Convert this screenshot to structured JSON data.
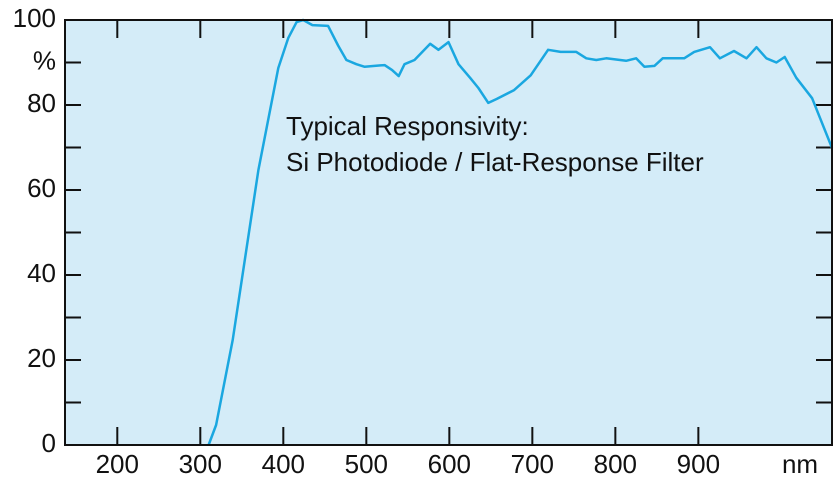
{
  "chart_data": {
    "type": "line",
    "annotation": [
      "Typical Responsivity:",
      "Si Photodiode / Flat-Response Filter"
    ],
    "x_label": "nm",
    "x": [
      310,
      319,
      339,
      370,
      394,
      406,
      416,
      424,
      435,
      454,
      466,
      476,
      488,
      498,
      510,
      522,
      531,
      539,
      546,
      558,
      577,
      587,
      599,
      611,
      625,
      635,
      647,
      657,
      678,
      698,
      719,
      734,
      753,
      765,
      777,
      789,
      813,
      825,
      835,
      847,
      857,
      883,
      895,
      914,
      926,
      943,
      958,
      970,
      982,
      994,
      1004,
      1018,
      1037,
      1061
    ],
    "values": [
      0,
      4.7,
      24.7,
      64.7,
      88.7,
      95.8,
      99.5,
      100,
      98.8,
      98.6,
      94,
      90.6,
      89.6,
      89,
      89.2,
      89.4,
      88.2,
      86.8,
      89.6,
      90.6,
      94.4,
      93,
      94.8,
      89.6,
      86.4,
      84,
      80.5,
      81.4,
      83.5,
      87,
      93,
      92.5,
      92.5,
      91,
      90.6,
      91,
      90.4,
      91,
      89,
      89.2,
      91,
      91,
      92.5,
      93.6,
      91,
      92.7,
      91,
      93.6,
      91,
      90,
      91.3,
      86.4,
      81.6,
      69.9
    ],
    "color": "#1aa7e0",
    "background": "#d4ecf8",
    "xlim": [
      137,
      1061
    ],
    "xticks": [
      200,
      300,
      400,
      500,
      600,
      700,
      800,
      900
    ],
    "ylim": [
      0,
      100
    ],
    "yticks": [
      0,
      20,
      40,
      60,
      80,
      {
        "value": 90,
        "label": "%"
      },
      100
    ],
    "yminor": [
      10,
      30,
      50,
      70
    ]
  }
}
